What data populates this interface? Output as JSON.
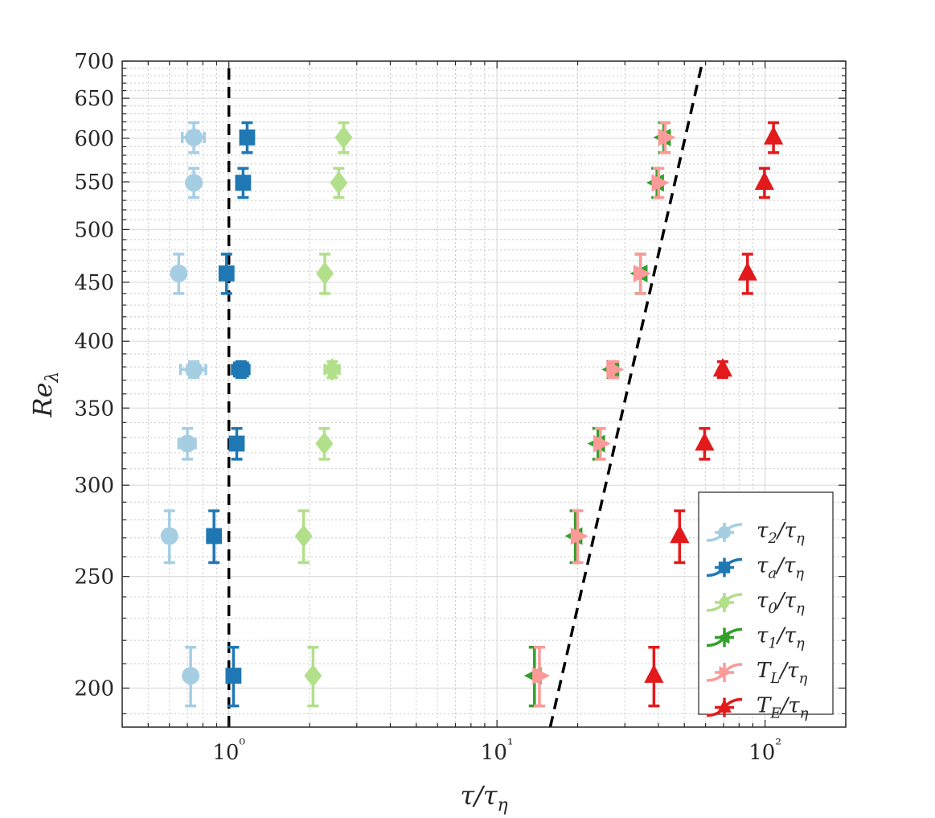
{
  "chart_data": {
    "type": "scatter",
    "xscale": "log",
    "yscale": "log",
    "xlim": [
      0.4,
      200
    ],
    "ylim": [
      185,
      700
    ],
    "xlabel": "τ/τη",
    "ylabel": "Reλ",
    "x_ticks": [
      {
        "value": 1,
        "label": "10⁰"
      },
      {
        "value": 10,
        "label": "10¹"
      },
      {
        "value": 100,
        "label": "10²"
      }
    ],
    "y_ticks": [
      200,
      250,
      300,
      350,
      400,
      450,
      500,
      550,
      600,
      650,
      700
    ],
    "grid": true,
    "legend_position": "bottom-right",
    "series": [
      {
        "name": "τ2/τη",
        "label_html": "<tspan>τ</tspan><tspan baseline-shift='sub' font-size='18'>2</tspan><tspan>/τ</tspan><tspan baseline-shift='sub' font-size='18'>η</tspan>",
        "marker": "circle",
        "color": "#a6cee3",
        "points": [
          {
            "x": 0.72,
            "y": 205,
            "xerr": 0.0,
            "yerr": 12
          },
          {
            "x": 0.6,
            "y": 271,
            "xerr": 0.0,
            "yerr": 14
          },
          {
            "x": 0.7,
            "y": 326,
            "xerr": 0.05,
            "yerr": 10
          },
          {
            "x": 0.74,
            "y": 378,
            "xerr": 0.08,
            "yerr": 6
          },
          {
            "x": 0.65,
            "y": 458,
            "xerr": 0.0,
            "yerr": 18
          },
          {
            "x": 0.74,
            "y": 549,
            "xerr": 0.0,
            "yerr": 16
          },
          {
            "x": 0.74,
            "y": 601,
            "xerr": 0.07,
            "yerr": 18
          }
        ]
      },
      {
        "name": "τa/τη",
        "marker": "square",
        "color": "#1f78b4",
        "points": [
          {
            "x": 1.04,
            "y": 205,
            "xerr": 0.0,
            "yerr": 12
          },
          {
            "x": 0.88,
            "y": 271,
            "xerr": 0.0,
            "yerr": 14
          },
          {
            "x": 1.07,
            "y": 326,
            "xerr": 0.05,
            "yerr": 10
          },
          {
            "x": 1.11,
            "y": 378,
            "xerr": 0.08,
            "yerr": 6
          },
          {
            "x": 0.98,
            "y": 458,
            "xerr": 0.0,
            "yerr": 18
          },
          {
            "x": 1.13,
            "y": 549,
            "xerr": 0.0,
            "yerr": 16
          },
          {
            "x": 1.17,
            "y": 601,
            "xerr": 0.0,
            "yerr": 18
          }
        ]
      },
      {
        "name": "τ0/τη",
        "marker": "diamond",
        "color": "#b2df8a",
        "points": [
          {
            "x": 2.06,
            "y": 205,
            "xerr": 0.0,
            "yerr": 12
          },
          {
            "x": 1.9,
            "y": 271,
            "xerr": 0.0,
            "yerr": 14
          },
          {
            "x": 2.27,
            "y": 326,
            "xerr": 0.0,
            "yerr": 10
          },
          {
            "x": 2.43,
            "y": 378,
            "xerr": 0.15,
            "yerr": 6
          },
          {
            "x": 2.28,
            "y": 458,
            "xerr": 0.0,
            "yerr": 18
          },
          {
            "x": 2.57,
            "y": 549,
            "xerr": 0.0,
            "yerr": 16
          },
          {
            "x": 2.68,
            "y": 601,
            "xerr": 0.0,
            "yerr": 18
          }
        ]
      },
      {
        "name": "τ1/τη",
        "marker": "triangle-left",
        "color": "#33a02c",
        "points": [
          {
            "x": 13.8,
            "y": 205,
            "xerr": 0.0,
            "yerr": 12
          },
          {
            "x": 19.6,
            "y": 271,
            "xerr": 0.0,
            "yerr": 14
          },
          {
            "x": 23.8,
            "y": 326,
            "xerr": 0.0,
            "yerr": 10
          },
          {
            "x": 26.9,
            "y": 378,
            "xerr": 0.0,
            "yerr": 6
          },
          {
            "x": 34.3,
            "y": 458,
            "xerr": 0.0,
            "yerr": 18
          },
          {
            "x": 39.5,
            "y": 549,
            "xerr": 0.0,
            "yerr": 16
          },
          {
            "x": 41.9,
            "y": 601,
            "xerr": 0.0,
            "yerr": 18
          }
        ]
      },
      {
        "name": "TL/τη",
        "marker": "triangle-right",
        "color": "#fb9a99",
        "points": [
          {
            "x": 14.4,
            "y": 205,
            "xerr": 0.0,
            "yerr": 12
          },
          {
            "x": 20.0,
            "y": 271,
            "xerr": 0.0,
            "yerr": 14
          },
          {
            "x": 24.3,
            "y": 326,
            "xerr": 0.0,
            "yerr": 10
          },
          {
            "x": 27.2,
            "y": 378,
            "xerr": 0.0,
            "yerr": 6
          },
          {
            "x": 34.3,
            "y": 458,
            "xerr": 0.0,
            "yerr": 18
          },
          {
            "x": 40.1,
            "y": 549,
            "xerr": 0.0,
            "yerr": 16
          },
          {
            "x": 42.4,
            "y": 601,
            "xerr": 0.0,
            "yerr": 18
          }
        ]
      },
      {
        "name": "TE/τη",
        "marker": "triangle-up",
        "color": "#e31a1c",
        "points": [
          {
            "x": 38.5,
            "y": 205,
            "xerr": 0.0,
            "yerr": 12
          },
          {
            "x": 48.0,
            "y": 271,
            "xerr": 0.0,
            "yerr": 14
          },
          {
            "x": 59.5,
            "y": 326,
            "xerr": 0.0,
            "yerr": 10
          },
          {
            "x": 69.5,
            "y": 378,
            "xerr": 0.0,
            "yerr": 6
          },
          {
            "x": 86.0,
            "y": 458,
            "xerr": 0.0,
            "yerr": 18
          },
          {
            "x": 99.5,
            "y": 549,
            "xerr": 0.0,
            "yerr": 16
          },
          {
            "x": 107.5,
            "y": 601,
            "xerr": 0.0,
            "yerr": 18
          }
        ]
      }
    ],
    "reference_lines": [
      {
        "name": "τ/τη = 1",
        "points": [
          [
            1.0,
            185
          ],
          [
            1.0,
            700
          ]
        ],
        "style": "dashed",
        "color": "#000000"
      },
      {
        "name": "Reλ scaling",
        "points": [
          [
            15.8,
            185
          ],
          [
            58.5,
            700
          ]
        ],
        "style": "dashed",
        "color": "#000000"
      }
    ]
  }
}
